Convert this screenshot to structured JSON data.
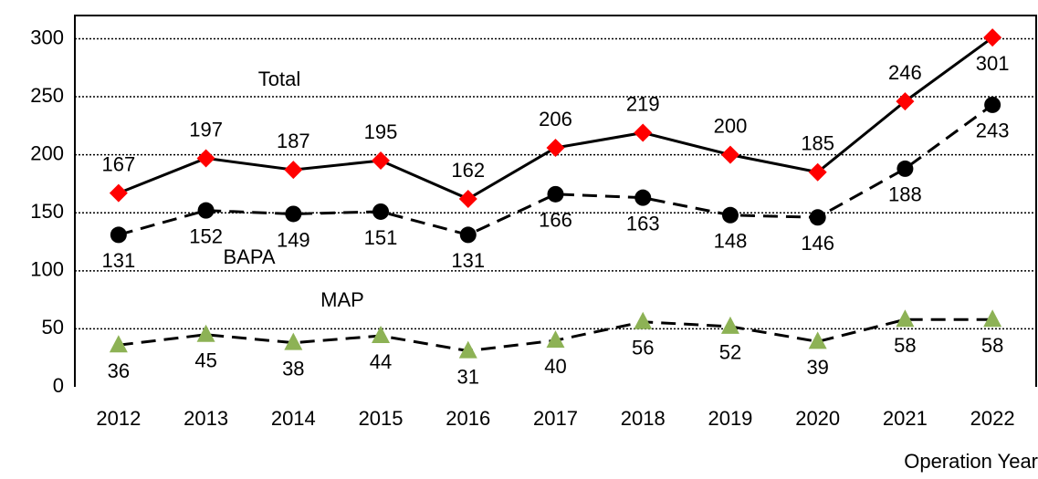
{
  "chart_data": {
    "type": "line",
    "x_label": "Operation Year",
    "categories": [
      "2012",
      "2013",
      "2014",
      "2015",
      "2016",
      "2017",
      "2018",
      "2019",
      "2020",
      "2021",
      "2022"
    ],
    "series": [
      {
        "name": "Total",
        "color": "#ff0000",
        "marker": "diamond",
        "dashed": false,
        "values": [
          167,
          197,
          187,
          195,
          162,
          206,
          219,
          200,
          185,
          246,
          301
        ]
      },
      {
        "name": "BAPA",
        "color": "#000000",
        "marker": "circle",
        "dashed": true,
        "values": [
          131,
          152,
          149,
          151,
          131,
          166,
          163,
          148,
          146,
          188,
          243
        ]
      },
      {
        "name": "MAP",
        "color": "#8db255",
        "marker": "triangle",
        "dashed": true,
        "values": [
          36,
          45,
          38,
          44,
          31,
          40,
          56,
          52,
          39,
          58,
          58
        ]
      }
    ],
    "ylim": [
      0,
      320
    ],
    "yticks": [
      0,
      50,
      100,
      150,
      200,
      250,
      300
    ],
    "grid": true
  }
}
